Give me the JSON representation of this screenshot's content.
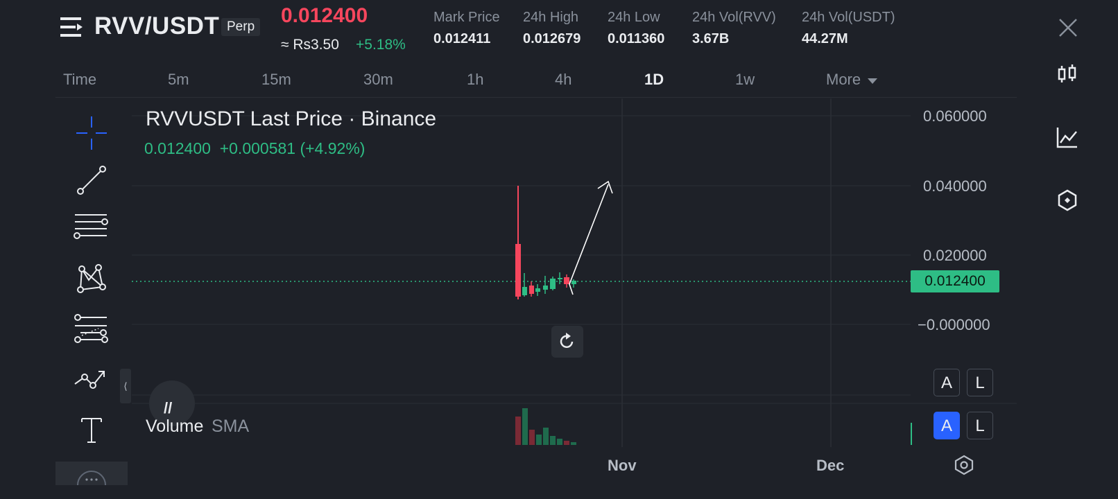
{
  "header": {
    "pair": "RVV/USDT",
    "contract_type": "Perp",
    "last_price": "0.012400",
    "approx_local": "≈ Rs3.50",
    "change_pct": "+5.18%",
    "stats": [
      {
        "label": "Mark Price",
        "value": "0.012411"
      },
      {
        "label": "24h High",
        "value": "0.012679"
      },
      {
        "label": "24h Low",
        "value": "0.011360"
      },
      {
        "label": "24h Vol(RVV)",
        "value": "3.67B"
      },
      {
        "label": "24h Vol(USDT)",
        "value": "44.27M"
      }
    ]
  },
  "intervals": [
    {
      "label": "Time",
      "active": false
    },
    {
      "label": "5m",
      "active": false
    },
    {
      "label": "15m",
      "active": false
    },
    {
      "label": "30m",
      "active": false
    },
    {
      "label": "1h",
      "active": false
    },
    {
      "label": "4h",
      "active": false
    },
    {
      "label": "1D",
      "active": true
    },
    {
      "label": "1w",
      "active": false
    },
    {
      "label": "More",
      "active": false
    }
  ],
  "chart": {
    "title": "RVVUSDT Last Price · Binance",
    "ohlc_line": "0.012400  +0.000581 (+4.92%)",
    "current_price_tag": "0.012400",
    "yaxis_labels": [
      "0.060000",
      "0.040000",
      "0.020000",
      "−0.000000"
    ],
    "xaxis_labels": [
      "Nov",
      "Dec"
    ],
    "volume_label": "Volume",
    "volume_indicator": "SMA",
    "scale_buttons_top": [
      "A",
      "L"
    ],
    "scale_buttons_bottom": [
      "A",
      "L"
    ],
    "colors": {
      "up": "#2ebd85",
      "down": "#f6465d",
      "background": "#1e2128",
      "grid": "#2b2f36"
    }
  },
  "icons": {
    "rail": [
      "candlestick-chart-icon",
      "line-chart-icon",
      "depth-icon"
    ],
    "tools": [
      "crosshair-icon",
      "trend-line-icon",
      "horizontal-lines-icon",
      "pattern-icon",
      "fib-icon",
      "prediction-icon",
      "text-icon"
    ]
  }
}
